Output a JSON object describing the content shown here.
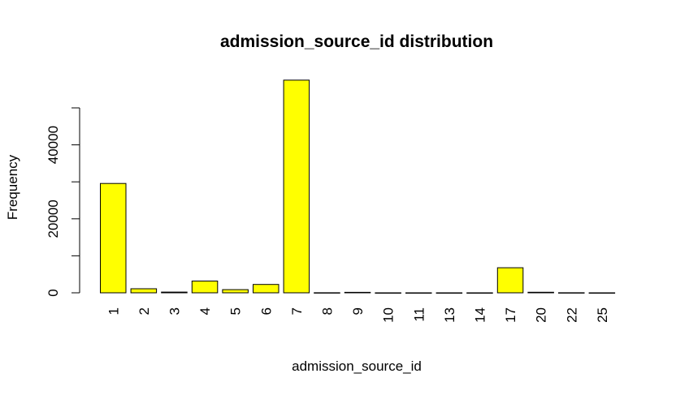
{
  "chart_data": {
    "type": "bar",
    "title": "admission_source_id distribution",
    "xlabel": "admission_source_id",
    "ylabel": "Frequency",
    "categories": [
      "1",
      "2",
      "3",
      "4",
      "5",
      "6",
      "7",
      "8",
      "9",
      "10",
      "11",
      "13",
      "14",
      "17",
      "20",
      "22",
      "25"
    ],
    "values": [
      29565,
      1104,
      187,
      3187,
      855,
      2264,
      57494,
      16,
      125,
      8,
      2,
      1,
      2,
      6781,
      161,
      12,
      2
    ],
    "yticks": [
      0,
      20000,
      40000
    ],
    "ylim": [
      0,
      57494
    ],
    "bar_color": "#ffff00",
    "grid": false,
    "legend": "none"
  }
}
